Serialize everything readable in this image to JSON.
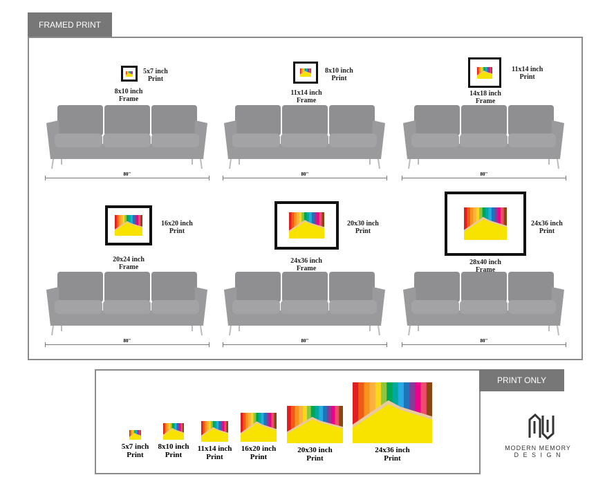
{
  "framed_section": {
    "tab_label": "FRAMED PRINT",
    "items": [
      {
        "print": "5x7 inch",
        "print_sub": "Print",
        "frame": "8x10 inch",
        "frame_sub": "Frame",
        "sofa_width": "80\""
      },
      {
        "print": "8x10 inch",
        "print_sub": "Print",
        "frame": "11x14 inch",
        "frame_sub": "Frame",
        "sofa_width": "80\""
      },
      {
        "print": "11x14 inch",
        "print_sub": "Print",
        "frame": "14x18 inch",
        "frame_sub": "Frame",
        "sofa_width": "80\""
      },
      {
        "print": "16x20 inch",
        "print_sub": "Print",
        "frame": "20x24 inch",
        "frame_sub": "Frame",
        "sofa_width": "80\""
      },
      {
        "print": "20x30 inch",
        "print_sub": "Print",
        "frame": "24x36 inch",
        "frame_sub": "Frame",
        "sofa_width": "80\""
      },
      {
        "print": "24x36 inch",
        "print_sub": "Print",
        "frame": "28x40 inch",
        "frame_sub": "Frame",
        "sofa_width": "80\""
      }
    ]
  },
  "print_section": {
    "tab_label": "PRINT ONLY",
    "items": [
      {
        "size": "5x7 inch",
        "sub": "Print"
      },
      {
        "size": "8x10 inch",
        "sub": "Print"
      },
      {
        "size": "11x14 inch",
        "sub": "Print"
      },
      {
        "size": "16x20 inch",
        "sub": "Print"
      },
      {
        "size": "20x30 inch",
        "sub": "Print"
      },
      {
        "size": "24x36 inch",
        "sub": "Print"
      }
    ]
  },
  "logo": {
    "line1": "MODERN MEMORY",
    "line2": "D E S I G N"
  },
  "colors": {
    "tab": "#777777",
    "sofa": "#9a9a9c",
    "print_yellow": "#f7e200",
    "pencils": [
      "#e02020",
      "#f05a14",
      "#f7941d",
      "#fbb040",
      "#f9d71c",
      "#8dc63f",
      "#00a651",
      "#00a99d",
      "#27aae1",
      "#1c75bc",
      "#7f3f98",
      "#ec008c",
      "#ef4b6c",
      "#8b4513"
    ]
  }
}
